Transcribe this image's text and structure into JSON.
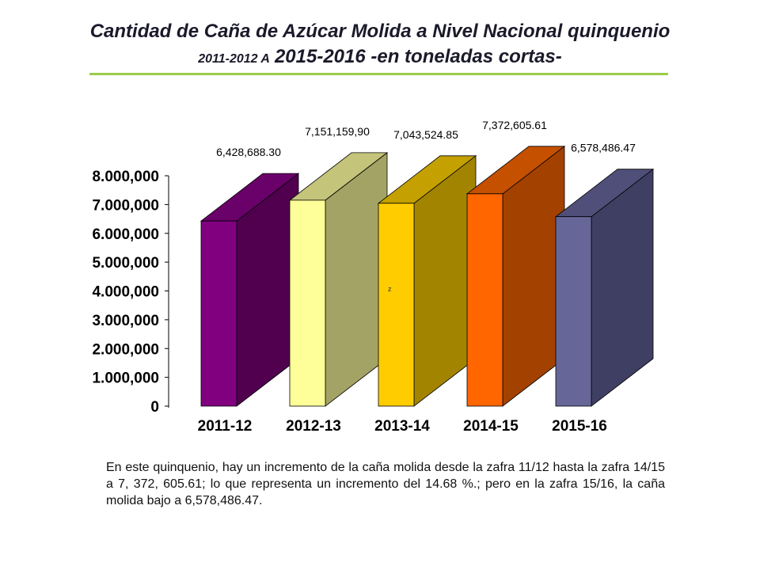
{
  "title": {
    "line1": "Cantidad de Caña de Azúcar Molida a Nivel Nacional  quinquenio",
    "line2_small": "2011-2012  A",
    "line2_main": "2015-2016 -en toneladas cortas-"
  },
  "chart_data": {
    "type": "bar",
    "title": "",
    "xlabel": "",
    "ylabel": "",
    "ylim": [
      0,
      8000000
    ],
    "y_ticks": [
      "0",
      "1.000,000",
      "2.000,000",
      "3.000,000",
      "4.000,000",
      "5.000,000",
      "6.000,000",
      "7.000,000",
      "8.000,000"
    ],
    "categories": [
      "2011-12",
      "2012-13",
      "2013-14",
      "2014-15",
      "2015-16"
    ],
    "values": [
      6428688.3,
      7151159.9,
      7043524.85,
      7372605.61,
      6578486.47
    ],
    "data_labels": [
      "6,428,688.30",
      "7,151,159,90",
      "7,043,524.85",
      "7,372,605.61",
      "6,578,486.47"
    ],
    "colors": [
      {
        "front": "#800080",
        "side": "#50004f",
        "top": "#6a006a"
      },
      {
        "front": "#ffff99",
        "side": "#a3a365",
        "top": "#c4c47a"
      },
      {
        "front": "#ffcc00",
        "side": "#a38400",
        "top": "#c4a000"
      },
      {
        "front": "#ff6600",
        "side": "#a34100",
        "top": "#c45000"
      },
      {
        "front": "#666699",
        "side": "#3f3f63",
        "top": "#4f4f7a"
      }
    ],
    "annotation": "z",
    "grid": false,
    "legend": "none"
  },
  "note": "En este quinquenio, hay un incremento de la caña molida desde la zafra 11/12 hasta la zafra 14/15 a 7, 372, 605.61; lo que representa un incremento del 14.68 %.; pero en la zafra 15/16, la caña molida bajo a 6,578,486.47."
}
